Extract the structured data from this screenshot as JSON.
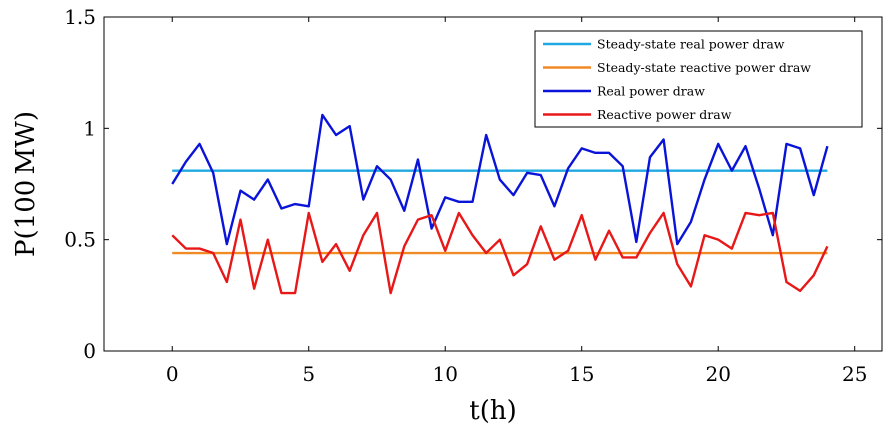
{
  "chart_data": {
    "type": "line",
    "xlabel": "t(h)",
    "ylabel": "P(100 MW)",
    "xlim": [
      -2.5,
      26
    ],
    "ylim": [
      0,
      1.5
    ],
    "xticks": [
      0,
      5,
      10,
      15,
      20,
      25
    ],
    "yticks": [
      0,
      0.5,
      1,
      1.5
    ],
    "xtick_labels": [
      "0",
      "5",
      "10",
      "15",
      "20",
      "25"
    ],
    "ytick_labels": [
      "0",
      "0.5",
      "1",
      "1.5"
    ],
    "grid": false,
    "legend_position": "top-right",
    "x": [
      0,
      0.5,
      1,
      1.5,
      2,
      2.5,
      3,
      3.5,
      4,
      4.5,
      5,
      5.5,
      6,
      6.5,
      7,
      7.5,
      8,
      8.5,
      9,
      9.5,
      10,
      10.5,
      11,
      11.5,
      12,
      12.5,
      13,
      13.5,
      14,
      14.5,
      15,
      15.5,
      16,
      16.5,
      17,
      17.5,
      18,
      18.5,
      19,
      19.5,
      20,
      20.5,
      21,
      21.5,
      22,
      22.5,
      23,
      23.5,
      24
    ],
    "series": [
      {
        "name": "Steady-state real power draw",
        "color": "#1fa9e0",
        "values": [
          0.81,
          0.81,
          0.81,
          0.81,
          0.81,
          0.81,
          0.81,
          0.81,
          0.81,
          0.81,
          0.81,
          0.81,
          0.81,
          0.81,
          0.81,
          0.81,
          0.81,
          0.81,
          0.81,
          0.81,
          0.81,
          0.81,
          0.81,
          0.81,
          0.81,
          0.81,
          0.81,
          0.81,
          0.81,
          0.81,
          0.81,
          0.81,
          0.81,
          0.81,
          0.81,
          0.81,
          0.81,
          0.81,
          0.81,
          0.81,
          0.81,
          0.81,
          0.81,
          0.81,
          0.81,
          0.81,
          0.81,
          0.81,
          0.81
        ]
      },
      {
        "name": "Steady-state reactive power draw",
        "color": "#f08a24",
        "values": [
          0.44,
          0.44,
          0.44,
          0.44,
          0.44,
          0.44,
          0.44,
          0.44,
          0.44,
          0.44,
          0.44,
          0.44,
          0.44,
          0.44,
          0.44,
          0.44,
          0.44,
          0.44,
          0.44,
          0.44,
          0.44,
          0.44,
          0.44,
          0.44,
          0.44,
          0.44,
          0.44,
          0.44,
          0.44,
          0.44,
          0.44,
          0.44,
          0.44,
          0.44,
          0.44,
          0.44,
          0.44,
          0.44,
          0.44,
          0.44,
          0.44,
          0.44,
          0.44,
          0.44,
          0.44,
          0.44,
          0.44,
          0.44,
          0.44
        ]
      },
      {
        "name": "Real power draw",
        "color": "#0a14d8",
        "values": [
          0.75,
          0.85,
          0.93,
          0.8,
          0.48,
          0.72,
          0.68,
          0.77,
          0.64,
          0.66,
          0.65,
          1.06,
          0.97,
          1.01,
          0.68,
          0.83,
          0.77,
          0.63,
          0.86,
          0.55,
          0.69,
          0.67,
          0.67,
          0.97,
          0.77,
          0.7,
          0.8,
          0.79,
          0.65,
          0.82,
          0.91,
          0.89,
          0.89,
          0.83,
          0.49,
          0.87,
          0.95,
          0.48,
          0.58,
          0.77,
          0.93,
          0.81,
          0.92,
          0.73,
          0.52,
          0.93,
          0.91,
          0.7,
          0.92
        ]
      },
      {
        "name": "Reactive power draw",
        "color": "#e81818",
        "values": [
          0.52,
          0.46,
          0.46,
          0.44,
          0.31,
          0.59,
          0.28,
          0.5,
          0.26,
          0.26,
          0.62,
          0.4,
          0.48,
          0.36,
          0.52,
          0.62,
          0.26,
          0.47,
          0.59,
          0.61,
          0.45,
          0.62,
          0.52,
          0.44,
          0.5,
          0.34,
          0.39,
          0.56,
          0.41,
          0.45,
          0.61,
          0.41,
          0.54,
          0.42,
          0.42,
          0.53,
          0.62,
          0.39,
          0.29,
          0.52,
          0.5,
          0.46,
          0.62,
          0.61,
          0.62,
          0.31,
          0.27,
          0.34,
          0.47
        ]
      }
    ]
  }
}
